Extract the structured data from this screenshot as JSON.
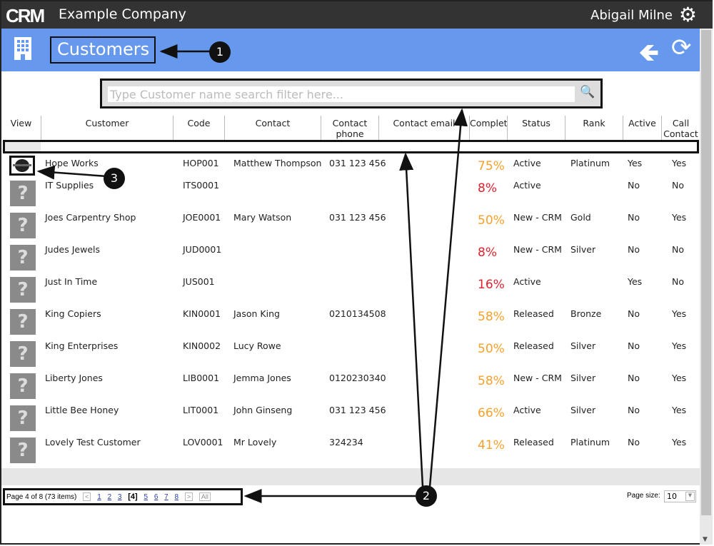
{
  "app": {
    "logo": "CRM",
    "company": "Example Company",
    "user": "Abigail Milne"
  },
  "page": {
    "title": "Customers"
  },
  "search": {
    "placeholder": "Type Customer name search filter here..."
  },
  "columns": [
    "View",
    "Customer",
    "Code",
    "Contact",
    "Contact phone",
    "Contact email",
    "Complet",
    "Status",
    "Rank",
    "Active",
    "Call Contact"
  ],
  "rows": [
    {
      "customer": "Hope Works",
      "code": "HOP001",
      "contact": "Matthew Thompson",
      "phone": "031 123 456",
      "email": "",
      "complete": "75%",
      "status": "Active",
      "rank": "Platinum",
      "active": "Yes",
      "call": "Yes",
      "image": "logo"
    },
    {
      "customer": "IT Supplies",
      "code": "ITS0001",
      "contact": "",
      "phone": "",
      "email": "",
      "complete": "8%",
      "status": "Active",
      "rank": "",
      "active": "No",
      "call": "No",
      "image": "placeholder"
    },
    {
      "customer": "Joes Carpentry Shop",
      "code": "JOE0001",
      "contact": "Mary Watson",
      "phone": "031 123 456",
      "email": "",
      "complete": "50%",
      "status": "New - CRM",
      "rank": "Gold",
      "active": "No",
      "call": "Yes",
      "image": "placeholder"
    },
    {
      "customer": "Judes Jewels",
      "code": "JUD0001",
      "contact": "",
      "phone": "",
      "email": "",
      "complete": "8%",
      "status": "New - CRM",
      "rank": "Silver",
      "active": "No",
      "call": "No",
      "image": "placeholder"
    },
    {
      "customer": "Just In Time",
      "code": "JUS001",
      "contact": "",
      "phone": "",
      "email": "",
      "complete": "16%",
      "status": "Active",
      "rank": "",
      "active": "Yes",
      "call": "No",
      "image": "placeholder"
    },
    {
      "customer": "King Copiers",
      "code": "KIN0001",
      "contact": "Jason King",
      "phone": "0210134508",
      "email": "",
      "complete": "58%",
      "status": "Released",
      "rank": "Bronze",
      "active": "No",
      "call": "Yes",
      "image": "placeholder"
    },
    {
      "customer": "King Enterprises",
      "code": "KIN0002",
      "contact": "Lucy Rowe",
      "phone": "",
      "email": "",
      "complete": "50%",
      "status": "Released",
      "rank": "Silver",
      "active": "No",
      "call": "Yes",
      "image": "placeholder"
    },
    {
      "customer": "Liberty Jones",
      "code": "LIB0001",
      "contact": "Jemma Jones",
      "phone": "0120230340",
      "email": "",
      "complete": "58%",
      "status": "New - CRM",
      "rank": "Silver",
      "active": "No",
      "call": "Yes",
      "image": "placeholder"
    },
    {
      "customer": "Little Bee Honey",
      "code": "LIT0001",
      "contact": "John Ginseng",
      "phone": "031 123 456",
      "email": "",
      "complete": "66%",
      "status": "Active",
      "rank": "Silver",
      "active": "No",
      "call": "Yes",
      "image": "placeholder"
    },
    {
      "customer": "Lovely Test Customer",
      "code": "LOV0001",
      "contact": "Mr Lovely",
      "phone": "324234",
      "email": "",
      "complete": "41%",
      "status": "Released",
      "rank": "Platinum",
      "active": "No",
      "call": "Yes",
      "image": "placeholder"
    }
  ],
  "pager": {
    "summary": "Page 4 of 8 (73 items)",
    "prev": "<",
    "pages": [
      "1",
      "2",
      "3",
      "[4]",
      "5",
      "6",
      "7",
      "8"
    ],
    "current": "[4]",
    "next": ">",
    "all": "All",
    "page_size_label": "Page size:",
    "page_size": "10"
  },
  "annotations": [
    "1",
    "2",
    "3"
  ],
  "colors": {
    "topbar": "#333333",
    "titlebar": "#6699ee",
    "pct_high": "#f7a12d",
    "pct_low": "#e0202e"
  }
}
